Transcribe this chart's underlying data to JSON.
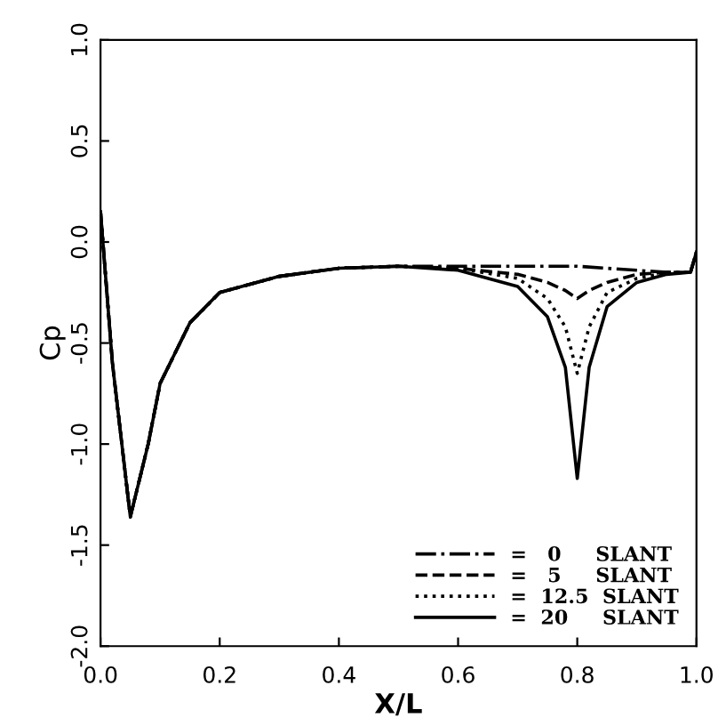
{
  "chart_data": {
    "type": "line",
    "xlabel": "X/L",
    "ylabel": "Cp",
    "xlim": [
      0.0,
      1.0
    ],
    "ylim": [
      -2.0,
      1.0
    ],
    "xticks": [
      {
        "value": 0.0,
        "label": "0.0"
      },
      {
        "value": 0.2,
        "label": "0.2"
      },
      {
        "value": 0.4,
        "label": "0.4"
      },
      {
        "value": 0.6,
        "label": "0.6"
      },
      {
        "value": 0.8,
        "label": "0.8"
      },
      {
        "value": 1.0,
        "label": "1.0"
      }
    ],
    "yticks": [
      {
        "value": -2.0,
        "label": "-2.0"
      },
      {
        "value": -1.5,
        "label": "-1.5"
      },
      {
        "value": -1.0,
        "label": "-1.0"
      },
      {
        "value": -0.5,
        "label": "-0.5"
      },
      {
        "value": 0.0,
        "label": "0.0"
      },
      {
        "value": 0.5,
        "label": "0.5"
      },
      {
        "value": 1.0,
        "label": "1.0"
      }
    ],
    "grid": false,
    "legend": "bottom right",
    "series": [
      {
        "name": "=   0     SLANT",
        "color": "#000000",
        "line_style": "dashdot",
        "x": [
          0.0,
          0.02,
          0.05,
          0.08,
          0.1,
          0.15,
          0.2,
          0.3,
          0.4,
          0.5,
          0.6,
          0.7,
          0.75,
          0.8,
          0.85,
          0.9,
          0.95,
          0.99,
          1.0
        ],
        "values": [
          0.15,
          -0.6,
          -1.36,
          -1.0,
          -0.7,
          -0.4,
          -0.25,
          -0.17,
          -0.13,
          -0.12,
          -0.12,
          -0.12,
          -0.12,
          -0.12,
          -0.13,
          -0.14,
          -0.15,
          -0.15,
          -0.05
        ]
      },
      {
        "name": "=   5     SLANT",
        "color": "#000000",
        "line_style": "dashed",
        "x": [
          0.0,
          0.02,
          0.05,
          0.08,
          0.1,
          0.15,
          0.2,
          0.3,
          0.4,
          0.5,
          0.6,
          0.7,
          0.75,
          0.78,
          0.8,
          0.82,
          0.85,
          0.9,
          0.95,
          0.99,
          1.0
        ],
        "values": [
          0.15,
          -0.6,
          -1.36,
          -1.0,
          -0.7,
          -0.4,
          -0.25,
          -0.17,
          -0.13,
          -0.12,
          -0.13,
          -0.16,
          -0.2,
          -0.24,
          -0.28,
          -0.24,
          -0.2,
          -0.16,
          -0.15,
          -0.15,
          -0.05
        ]
      },
      {
        "name": "=  12.5  SLANT",
        "color": "#000000",
        "line_style": "dotted",
        "x": [
          0.0,
          0.02,
          0.05,
          0.08,
          0.1,
          0.15,
          0.2,
          0.3,
          0.4,
          0.5,
          0.6,
          0.7,
          0.75,
          0.78,
          0.8,
          0.82,
          0.85,
          0.9,
          0.95,
          0.99,
          1.0
        ],
        "values": [
          0.15,
          -0.6,
          -1.36,
          -1.0,
          -0.7,
          -0.4,
          -0.25,
          -0.17,
          -0.13,
          -0.12,
          -0.13,
          -0.18,
          -0.28,
          -0.42,
          -0.65,
          -0.42,
          -0.25,
          -0.18,
          -0.15,
          -0.15,
          -0.05
        ]
      },
      {
        "name": "=  20     SLANT",
        "color": "#000000",
        "line_style": "solid",
        "x": [
          0.0,
          0.02,
          0.05,
          0.08,
          0.1,
          0.15,
          0.2,
          0.3,
          0.4,
          0.5,
          0.6,
          0.7,
          0.75,
          0.78,
          0.8,
          0.82,
          0.85,
          0.9,
          0.95,
          0.99,
          1.0
        ],
        "values": [
          0.15,
          -0.6,
          -1.36,
          -1.0,
          -0.7,
          -0.4,
          -0.25,
          -0.17,
          -0.13,
          -0.12,
          -0.14,
          -0.22,
          -0.37,
          -0.62,
          -1.17,
          -0.62,
          -0.32,
          -0.2,
          -0.16,
          -0.15,
          -0.05
        ]
      }
    ]
  }
}
